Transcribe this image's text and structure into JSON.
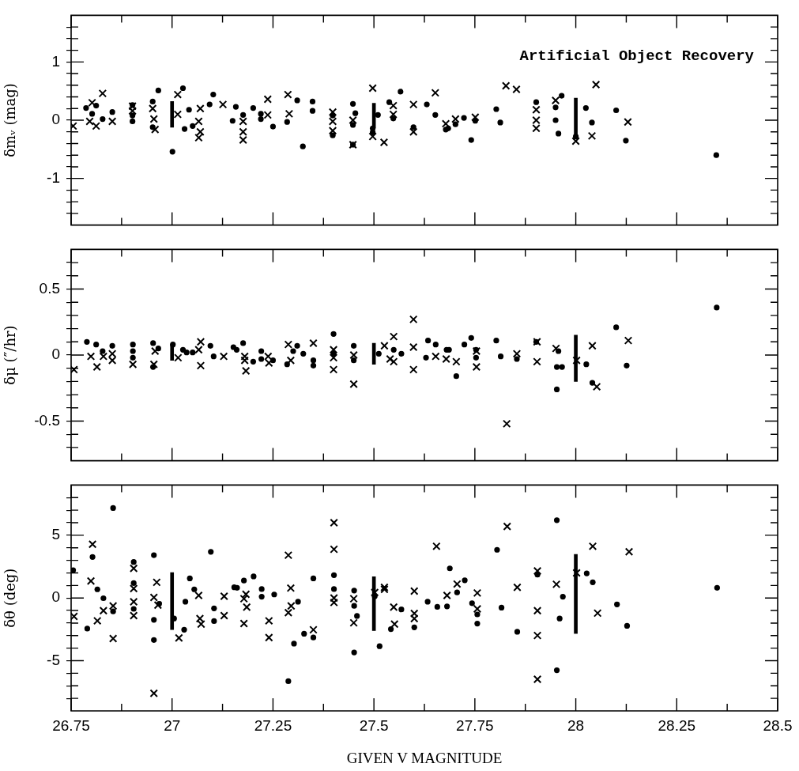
{
  "chart_data": [
    {
      "type": "scatter",
      "ylabel": "δmᵥ (mag)",
      "annotations": [
        "Artificial Object Recovery"
      ],
      "tick_labels": "y",
      "xlim": [
        26.75,
        28.5
      ],
      "xticks": [
        26.75,
        {
          "value": 26.875,
          "label": null
        },
        27,
        {
          "value": 27.125,
          "label": null
        },
        27.25,
        {
          "value": 27.375,
          "label": null
        },
        27.5,
        {
          "value": 27.625,
          "label": null
        },
        27.75,
        {
          "value": 27.875,
          "label": null
        },
        28,
        {
          "value": 28.125,
          "label": null
        },
        28.25,
        {
          "value": 28.375,
          "label": null
        },
        28.5
      ],
      "ylim": [
        -1.8,
        1.8
      ],
      "yticks": [
        {
          "value": -1.6,
          "label": null
        },
        {
          "value": -1.4,
          "label": null
        },
        {
          "value": -1.2,
          "label": null
        },
        -1,
        {
          "value": -0.8,
          "label": null
        },
        {
          "value": -0.6,
          "label": null
        },
        {
          "value": -0.4,
          "label": null
        },
        {
          "value": -0.2,
          "label": null
        },
        0,
        {
          "value": 0.2,
          "label": null
        },
        {
          "value": 0.4,
          "label": null
        },
        {
          "value": 0.6,
          "label": null
        },
        {
          "value": 0.8,
          "label": null
        },
        1,
        {
          "value": 1.2,
          "label": null
        },
        {
          "value": 1.4,
          "label": null
        },
        {
          "value": 1.6,
          "label": null
        }
      ],
      "series": [
        {
          "color": "#000000",
          "marker": "circle",
          "x": [
            26.787,
            26.802,
            26.812,
            26.828,
            26.852,
            26.902,
            26.902,
            26.902,
            26.952,
            26.952,
            26.966,
            27.001,
            27.027,
            27.031,
            27.042,
            27.051,
            27.093,
            27.102,
            27.15,
            27.158,
            27.176,
            27.201,
            27.22,
            27.22,
            27.25,
            27.285,
            27.31,
            27.324,
            27.348,
            27.348,
            27.398,
            27.398,
            27.448,
            27.448,
            27.448,
            27.454,
            27.497,
            27.497,
            27.51,
            27.538,
            27.548,
            27.566,
            27.598,
            27.631,
            27.652,
            27.678,
            27.684,
            27.702,
            27.723,
            27.741,
            27.751,
            27.803,
            27.813,
            27.902,
            27.95,
            27.95,
            27.957,
            27.965,
            28.0,
            28.025,
            28.04,
            28.1,
            28.124,
            28.348
          ],
          "values": [
            0.21,
            0.11,
            0.25,
            0.02,
            0.14,
            0.26,
            0.08,
            -0.02,
            0.32,
            -0.12,
            0.51,
            -0.54,
            0.55,
            -0.15,
            0.18,
            -0.1,
            0.27,
            0.44,
            -0.01,
            0.23,
            0.09,
            0.21,
            0.11,
            0.02,
            -0.11,
            -0.03,
            0.34,
            -0.45,
            0.32,
            0.16,
            0.08,
            -0.26,
            0.28,
            -0.08,
            -0.42,
            0.12,
            -0.14,
            -0.21,
            0.09,
            0.31,
            0.03,
            0.49,
            -0.12,
            0.27,
            0.09,
            -0.16,
            -0.14,
            -0.07,
            0.04,
            -0.34,
            -0.01,
            0.19,
            -0.04,
            0.31,
            0.22,
            0,
            -0.23,
            0.42,
            -0.28,
            0.21,
            -0.04,
            0.17,
            -0.35,
            -0.6
          ]
        },
        {
          "color": "#000000",
          "marker": "cross",
          "x": [
            26.755,
            26.796,
            26.802,
            26.812,
            26.828,
            26.852,
            26.902,
            26.902,
            26.952,
            26.955,
            26.958,
            27.014,
            27.014,
            27.066,
            27.07,
            27.07,
            27.066,
            27.126,
            27.176,
            27.176,
            27.176,
            27.237,
            27.237,
            27.287,
            27.29,
            27.398,
            27.398,
            27.398,
            27.448,
            27.448,
            27.497,
            27.497,
            27.525,
            27.548,
            27.548,
            27.598,
            27.598,
            27.652,
            27.678,
            27.702,
            27.751,
            27.827,
            27.853,
            27.902,
            27.902,
            27.902,
            27.95,
            28.0,
            28.04,
            28.05,
            28.129
          ],
          "values": [
            -0.1,
            -0.02,
            0.3,
            -0.1,
            0.46,
            -0.02,
            0.24,
            0.16,
            0.2,
            0.02,
            -0.16,
            0.1,
            0.44,
            -0.02,
            0.2,
            -0.2,
            -0.3,
            0.27,
            -0.02,
            -0.2,
            -0.34,
            0.36,
            0.09,
            0.44,
            0.11,
            0.14,
            -0.02,
            -0.18,
            0,
            -0.42,
            0.55,
            -0.28,
            -0.38,
            0.25,
            0.1,
            0.27,
            -0.2,
            0.47,
            -0.06,
            0.02,
            0.05,
            0.59,
            0.53,
            0.18,
            0,
            -0.14,
            0.34,
            -0.36,
            -0.27,
            0.61,
            -0.03
          ]
        },
        {
          "type": "bar",
          "color": "#000000",
          "x": [
            27,
            27.5,
            28
          ],
          "base": [
            -0.12,
            -0.13,
            -0.28
          ],
          "values": [
            0.44,
            0.42,
            0.66
          ]
        }
      ]
    },
    {
      "type": "scatter",
      "ylabel": "δμ (″/hr)",
      "tick_labels": "y",
      "xlim": [
        26.75,
        28.5
      ],
      "xticks": [
        26.75,
        {
          "value": 26.875,
          "label": null
        },
        27,
        {
          "value": 27.125,
          "label": null
        },
        27.25,
        {
          "value": 27.375,
          "label": null
        },
        27.5,
        {
          "value": 27.625,
          "label": null
        },
        27.75,
        {
          "value": 27.875,
          "label": null
        },
        28,
        {
          "value": 28.125,
          "label": null
        },
        28.25,
        {
          "value": 28.375,
          "label": null
        },
        28.5
      ],
      "ylim": [
        -0.8,
        0.8
      ],
      "yticks": [
        {
          "value": -0.7,
          "label": null
        },
        {
          "value": -0.6,
          "label": null
        },
        -0.5,
        {
          "value": -0.4,
          "label": null
        },
        {
          "value": -0.3,
          "label": null
        },
        {
          "value": -0.2,
          "label": null
        },
        {
          "value": -0.1,
          "label": null
        },
        0,
        {
          "value": 0.1,
          "label": null
        },
        {
          "value": 0.2,
          "label": null
        },
        {
          "value": 0.3,
          "label": null
        },
        {
          "value": 0.4,
          "label": null
        },
        0.5,
        {
          "value": 0.6,
          "label": null
        },
        {
          "value": 0.7,
          "label": null
        }
      ],
      "series": [
        {
          "color": "#000000",
          "marker": "circle",
          "x": [
            26.789,
            26.812,
            26.828,
            26.852,
            26.903,
            26.903,
            26.903,
            26.953,
            26.953,
            26.966,
            27.002,
            27.027,
            27.036,
            27.051,
            27.095,
            27.103,
            27.152,
            27.16,
            27.176,
            27.201,
            27.221,
            27.221,
            27.25,
            27.285,
            27.3,
            27.31,
            27.325,
            27.35,
            27.35,
            27.4,
            27.4,
            27.45,
            27.45,
            27.512,
            27.549,
            27.568,
            27.629,
            27.634,
            27.653,
            27.68,
            27.686,
            27.704,
            27.724,
            27.741,
            27.753,
            27.753,
            27.803,
            27.814,
            27.854,
            27.902,
            27.953,
            27.957,
            27.966,
            27.953,
            28.026,
            28.041,
            28.1,
            28.126,
            28.349
          ],
          "values": [
            0.1,
            0.08,
            0.03,
            0.07,
            0.08,
            0.03,
            -0.02,
            0.09,
            -0.09,
            0.05,
            0.08,
            0.04,
            0.02,
            0.02,
            0.07,
            -0.01,
            0.06,
            0.04,
            0.09,
            -0.05,
            0.03,
            -0.03,
            -0.04,
            -0.07,
            0.03,
            0.07,
            0.01,
            -0.04,
            -0.08,
            0.16,
            0.01,
            0.07,
            -0.04,
            0.01,
            0.04,
            0.01,
            -0.02,
            0.11,
            0.08,
            0.04,
            0.04,
            -0.16,
            0.08,
            0.13,
            0.04,
            -0.02,
            0.11,
            -0.01,
            -0.03,
            0.1,
            -0.09,
            0.03,
            -0.09,
            -0.26,
            -0.07,
            -0.21,
            0.21,
            -0.08,
            0.36
          ]
        },
        {
          "color": "#000000",
          "marker": "cross",
          "x": [
            26.757,
            26.799,
            26.814,
            26.83,
            26.852,
            26.852,
            26.903,
            26.955,
            26.958,
            27.015,
            27.066,
            27.071,
            27.071,
            27.128,
            27.18,
            27.18,
            27.183,
            27.238,
            27.24,
            27.288,
            27.294,
            27.35,
            27.4,
            27.4,
            27.4,
            27.45,
            27.45,
            27.526,
            27.54,
            27.549,
            27.549,
            27.598,
            27.598,
            27.598,
            27.653,
            27.679,
            27.704,
            27.754,
            27.754,
            27.829,
            27.854,
            27.904,
            27.904,
            27.951,
            28.002,
            28.041,
            28.052,
            28.13
          ],
          "values": [
            -0.11,
            -0.01,
            -0.09,
            -0.01,
            0.01,
            -0.04,
            -0.07,
            -0.07,
            0.03,
            -0.02,
            0.04,
            0.1,
            -0.08,
            -0.01,
            -0.01,
            -0.04,
            -0.12,
            -0.01,
            -0.06,
            0.08,
            -0.04,
            0.09,
            0.04,
            -0.02,
            -0.11,
            -0.22,
            0,
            0.07,
            -0.03,
            0.14,
            -0.05,
            0.27,
            0.06,
            -0.11,
            -0.01,
            -0.03,
            -0.05,
            0.03,
            -0.09,
            -0.52,
            0.01,
            0.1,
            -0.05,
            0.05,
            -0.04,
            0.07,
            -0.24,
            0.11
          ]
        },
        {
          "type": "bar",
          "color": "#000000",
          "x": [
            27,
            27.5,
            28
          ],
          "base": [
            -0.04,
            -0.07,
            -0.2
          ],
          "values": [
            0.12,
            0.16,
            0.35
          ]
        }
      ]
    },
    {
      "type": "scatter",
      "ylabel": "δθ (deg)",
      "xlabel": "GIVEN V MAGNITUDE",
      "xlim": [
        26.75,
        28.5
      ],
      "xticks": [
        26.75,
        {
          "value": 26.875,
          "label": null
        },
        27,
        {
          "value": 27.125,
          "label": null
        },
        27.25,
        {
          "value": 27.375,
          "label": null
        },
        27.5,
        {
          "value": 27.625,
          "label": null
        },
        27.75,
        {
          "value": 27.875,
          "label": null
        },
        28,
        {
          "value": 28.125,
          "label": null
        },
        28.25,
        {
          "value": 28.375,
          "label": null
        },
        28.5
      ],
      "ylim": [
        -9,
        9
      ],
      "yticks": [
        {
          "value": -8,
          "label": null
        },
        {
          "value": -7,
          "label": null
        },
        {
          "value": -6,
          "label": null
        },
        -5,
        {
          "value": -4,
          "label": null
        },
        {
          "value": -3,
          "label": null
        },
        {
          "value": -2,
          "label": null
        },
        {
          "value": -1,
          "label": null
        },
        0,
        {
          "value": 1,
          "label": null
        },
        {
          "value": 2,
          "label": null
        },
        {
          "value": 3,
          "label": null
        },
        {
          "value": 4,
          "label": null
        },
        5,
        {
          "value": 6,
          "label": null
        },
        {
          "value": 7,
          "label": null
        },
        {
          "value": 8,
          "label": null
        }
      ],
      "series": [
        {
          "color": "#000000",
          "marker": "circle",
          "x": [
            26.755,
            26.79,
            26.803,
            26.815,
            26.83,
            26.854,
            26.854,
            26.905,
            26.905,
            26.905,
            26.955,
            26.955,
            26.955,
            26.968,
            27.005,
            27.03,
            27.033,
            27.044,
            27.055,
            27.096,
            27.104,
            27.104,
            27.154,
            27.161,
            27.178,
            27.202,
            27.222,
            27.222,
            27.253,
            27.288,
            27.302,
            27.312,
            27.327,
            27.35,
            27.35,
            27.401,
            27.401,
            27.451,
            27.451,
            27.458,
            27.451,
            27.502,
            27.514,
            27.542,
            27.568,
            27.6,
            27.633,
            27.657,
            27.681,
            27.688,
            27.706,
            27.725,
            27.743,
            27.756,
            27.756,
            27.805,
            27.816,
            27.855,
            27.905,
            27.953,
            27.953,
            27.96,
            27.968,
            28.027,
            28.042,
            28.102,
            28.127,
            28.35
          ],
          "values": [
            2.22,
            -2.44,
            3.27,
            0.69,
            -0.02,
            7.17,
            -1.07,
            2.87,
            1.19,
            -0.87,
            3.41,
            -1.74,
            -3.35,
            -0.46,
            -1.64,
            -2.53,
            -0.3,
            1.56,
            0.69,
            3.68,
            -0.83,
            -1.84,
            0.85,
            0.81,
            1.39,
            1.72,
            0.71,
            0.1,
            0.28,
            -6.63,
            -3.64,
            -0.3,
            -2.85,
            1.56,
            -3.15,
            1.82,
            0.71,
            0.59,
            -0.63,
            -1.43,
            -4.34,
            0.14,
            -3.84,
            -2.48,
            -0.91,
            -2.34,
            -0.3,
            -0.71,
            -0.67,
            2.36,
            0.44,
            1.41,
            -0.42,
            -1.31,
            -2.04,
            3.84,
            -0.77,
            -2.69,
            1.86,
            6.2,
            -5.76,
            -1.64,
            0.1,
            1.96,
            1.25,
            -0.51,
            -2.22,
            0.81
          ]
        },
        {
          "color": "#000000",
          "marker": "cross",
          "x": [
            26.757,
            26.799,
            26.803,
            26.815,
            26.83,
            26.854,
            26.854,
            26.905,
            26.905,
            26.905,
            26.905,
            26.955,
            26.955,
            26.962,
            26.965,
            27.017,
            27.066,
            27.069,
            27.072,
            27.129,
            27.129,
            27.178,
            27.183,
            27.185,
            27.178,
            27.24,
            27.24,
            27.288,
            27.294,
            27.295,
            27.288,
            27.35,
            27.401,
            27.401,
            27.401,
            27.401,
            27.45,
            27.45,
            27.502,
            27.526,
            27.526,
            27.549,
            27.551,
            27.6,
            27.6,
            27.6,
            27.655,
            27.681,
            27.706,
            27.756,
            27.756,
            27.83,
            27.855,
            27.905,
            27.905,
            27.905,
            27.905,
            27.952,
            28.002,
            28.042,
            28.054,
            28.132
          ],
          "values": [
            -1.47,
            1.35,
            4.28,
            -1.82,
            -1.01,
            -0.63,
            -3.23,
            2.36,
            0.75,
            -0.3,
            -1.41,
            0.04,
            -7.6,
            1.25,
            -0.57,
            -3.19,
            0.2,
            -1.64,
            -2.08,
            0.14,
            -1.41,
            -0.06,
            0.3,
            -0.73,
            -2.04,
            -1.82,
            -3.15,
            3.41,
            0.79,
            -0.63,
            -1.17,
            -2.53,
            6.0,
            3.88,
            0,
            -0.36,
            -0.06,
            -1.98,
            0.44,
            0.85,
            0.69,
            -0.73,
            -2.08,
            0.55,
            -1.23,
            -1.64,
            4.12,
            0.2,
            1.11,
            0.4,
            -0.87,
            5.7,
            0.85,
            2.16,
            -1.01,
            -2.99,
            -6.48,
            1.09,
            2.0,
            4.12,
            -1.21,
            3.68
          ]
        },
        {
          "type": "bar",
          "color": "#000000",
          "x": [
            27,
            27.5,
            28
          ],
          "base": [
            -2.52,
            -2.6,
            -2.83
          ],
          "values": [
            4.54,
            4.3,
            6.3
          ]
        }
      ]
    }
  ]
}
